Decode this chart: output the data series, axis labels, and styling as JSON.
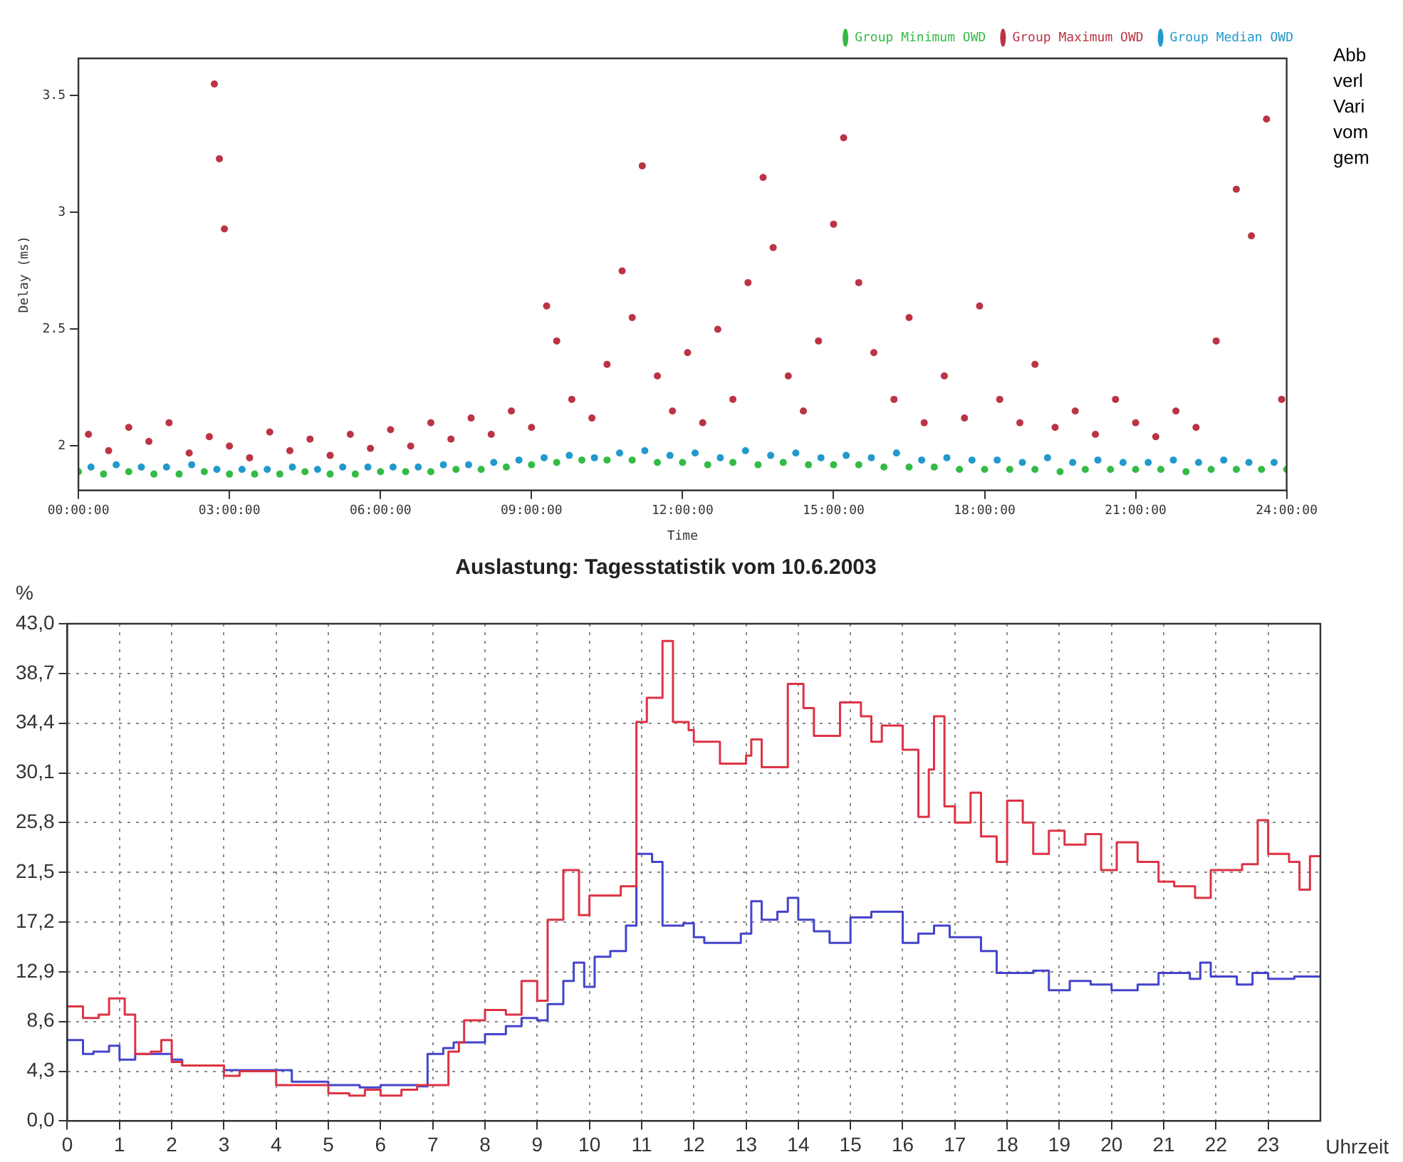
{
  "chart_data": [
    {
      "type": "scatter",
      "xlabel": "Time",
      "ylabel": "Delay (ms)",
      "xlim": [
        0,
        24
      ],
      "ylim": [
        1.81,
        3.66
      ],
      "xticks": [
        {
          "value": 0,
          "label": "00:00:00"
        },
        {
          "value": 3,
          "label": "03:00:00"
        },
        {
          "value": 6,
          "label": "06:00:00"
        },
        {
          "value": 9,
          "label": "09:00:00"
        },
        {
          "value": 12,
          "label": "12:00:00"
        },
        {
          "value": 15,
          "label": "15:00:00"
        },
        {
          "value": 18,
          "label": "18:00:00"
        },
        {
          "value": 21,
          "label": "21:00:00"
        },
        {
          "value": 24,
          "label": "24:00:00"
        }
      ],
      "yticks": [
        2,
        2.5,
        3,
        3.5
      ],
      "grid": false,
      "legend": "top right",
      "marker": "circle",
      "annotations": [
        "Abb",
        "verl",
        "Vari",
        "vom",
        "gem"
      ],
      "series": [
        {
          "name": "Group Minimum OWD",
          "color": "#33bb44",
          "x": [
            0,
            0.5,
            1,
            1.5,
            2,
            2.5,
            3,
            3.5,
            4,
            4.5,
            5,
            5.5,
            6,
            6.5,
            7,
            7.5,
            8,
            8.5,
            9,
            9.5,
            10,
            10.5,
            11,
            11.5,
            12,
            12.5,
            13,
            13.5,
            14,
            14.5,
            15,
            15.5,
            16,
            16.5,
            17,
            17.5,
            18,
            18.5,
            19,
            19.5,
            20,
            20.5,
            21,
            21.5,
            22,
            22.5,
            23,
            23.5,
            24
          ],
          "values": [
            1.89,
            1.88,
            1.89,
            1.88,
            1.88,
            1.89,
            1.88,
            1.88,
            1.88,
            1.89,
            1.88,
            1.88,
            1.89,
            1.89,
            1.89,
            1.9,
            1.9,
            1.91,
            1.92,
            1.93,
            1.94,
            1.94,
            1.94,
            1.93,
            1.93,
            1.92,
            1.93,
            1.92,
            1.93,
            1.92,
            1.92,
            1.92,
            1.91,
            1.91,
            1.91,
            1.9,
            1.9,
            1.9,
            1.9,
            1.89,
            1.9,
            1.9,
            1.9,
            1.9,
            1.89,
            1.9,
            1.9,
            1.9,
            1.9
          ]
        },
        {
          "name": "Group Maximum OWD",
          "color": "#bb3344",
          "x": [
            0.2,
            0.6,
            1.0,
            1.4,
            1.8,
            2.2,
            2.6,
            2.7,
            2.8,
            2.9,
            3.0,
            3.4,
            3.8,
            4.2,
            4.6,
            5.0,
            5.4,
            5.8,
            6.2,
            6.6,
            7.0,
            7.4,
            7.8,
            8.2,
            8.6,
            9.0,
            9.3,
            9.5,
            9.8,
            10.2,
            10.5,
            10.8,
            11.0,
            11.2,
            11.5,
            11.8,
            12.1,
            12.4,
            12.7,
            13.0,
            13.3,
            13.6,
            13.8,
            14.1,
            14.4,
            14.7,
            15.0,
            15.2,
            15.5,
            15.8,
            16.2,
            16.5,
            16.8,
            17.2,
            17.6,
            17.9,
            18.3,
            18.7,
            19.0,
            19.4,
            19.8,
            20.2,
            20.6,
            21.0,
            21.4,
            21.8,
            22.2,
            22.6,
            23.0,
            23.3,
            23.6,
            23.9
          ],
          "values": [
            2.05,
            1.98,
            2.08,
            2.02,
            2.1,
            1.97,
            2.04,
            3.55,
            3.23,
            2.93,
            2.0,
            1.95,
            2.06,
            1.98,
            2.03,
            1.96,
            2.05,
            1.99,
            2.07,
            2.0,
            2.1,
            2.03,
            2.12,
            2.05,
            2.15,
            2.08,
            2.6,
            2.45,
            2.2,
            2.12,
            2.35,
            2.75,
            2.55,
            3.2,
            2.3,
            2.15,
            2.4,
            2.1,
            2.5,
            2.2,
            2.7,
            3.15,
            2.85,
            2.3,
            2.15,
            2.45,
            2.95,
            3.32,
            2.7,
            2.4,
            2.2,
            2.55,
            2.1,
            2.3,
            2.12,
            2.6,
            2.2,
            2.1,
            2.35,
            2.08,
            2.15,
            2.05,
            2.2,
            2.1,
            2.04,
            2.15,
            2.08,
            2.45,
            3.1,
            2.9,
            3.4,
            2.2
          ]
        },
        {
          "name": "Group Median OWD",
          "color": "#2299cc",
          "x": [
            0.25,
            0.75,
            1.25,
            1.75,
            2.25,
            2.75,
            3.25,
            3.75,
            4.25,
            4.75,
            5.25,
            5.75,
            6.25,
            6.75,
            7.25,
            7.75,
            8.25,
            8.75,
            9.25,
            9.75,
            10.25,
            10.75,
            11.25,
            11.75,
            12.25,
            12.75,
            13.25,
            13.75,
            14.25,
            14.75,
            15.25,
            15.75,
            16.25,
            16.75,
            17.25,
            17.75,
            18.25,
            18.75,
            19.25,
            19.75,
            20.25,
            20.75,
            21.25,
            21.75,
            22.25,
            22.75,
            23.25,
            23.75
          ],
          "values": [
            1.91,
            1.92,
            1.91,
            1.91,
            1.92,
            1.9,
            1.9,
            1.9,
            1.91,
            1.9,
            1.91,
            1.91,
            1.91,
            1.91,
            1.92,
            1.92,
            1.93,
            1.94,
            1.95,
            1.96,
            1.95,
            1.97,
            1.98,
            1.96,
            1.97,
            1.95,
            1.98,
            1.96,
            1.97,
            1.95,
            1.96,
            1.95,
            1.97,
            1.94,
            1.95,
            1.94,
            1.94,
            1.93,
            1.95,
            1.93,
            1.94,
            1.93,
            1.93,
            1.94,
            1.93,
            1.94,
            1.93,
            1.93
          ]
        }
      ]
    },
    {
      "type": "step",
      "title": "Auslastung: Tagesstatistik vom 10.6.2003",
      "xlabel": "Uhrzeit",
      "ylabel": "%",
      "xlim": [
        0,
        24
      ],
      "ylim": [
        0,
        43
      ],
      "xticks": [
        0,
        1,
        2,
        3,
        4,
        5,
        6,
        7,
        8,
        9,
        10,
        11,
        12,
        13,
        14,
        15,
        16,
        17,
        18,
        19,
        20,
        21,
        22,
        23
      ],
      "yticks": [
        {
          "value": 0,
          "label": "0,0"
        },
        {
          "value": 4.3,
          "label": "4,3"
        },
        {
          "value": 8.6,
          "label": "8,6"
        },
        {
          "value": 12.9,
          "label": "12,9"
        },
        {
          "value": 17.2,
          "label": "17,2"
        },
        {
          "value": 21.5,
          "label": "21,5"
        },
        {
          "value": 25.8,
          "label": "25,8"
        },
        {
          "value": 30.1,
          "label": "30,1"
        },
        {
          "value": 34.4,
          "label": "34,4"
        },
        {
          "value": 38.7,
          "label": "38,7"
        },
        {
          "value": 43,
          "label": "43,0"
        }
      ],
      "grid": true,
      "marker": "none",
      "line_style": "solid",
      "series": [
        {
          "color": "#dd3344",
          "x": [
            0,
            0.3,
            0.6,
            0.8,
            1.1,
            1.3,
            1.6,
            1.8,
            2.0,
            2.2,
            3.0,
            3.3,
            4.0,
            5.0,
            5.4,
            5.7,
            6.0,
            6.4,
            6.7,
            7.3,
            7.5,
            7.6,
            8.0,
            8.4,
            8.7,
            9.0,
            9.2,
            9.5,
            9.8,
            10.0,
            10.6,
            10.9,
            11.1,
            11.4,
            11.6,
            11.9,
            12.0,
            12.5,
            13.0,
            13.1,
            13.3,
            13.8,
            14.1,
            14.3,
            14.8,
            15.2,
            15.4,
            15.6,
            16.0,
            16.3,
            16.5,
            16.6,
            16.8,
            17.0,
            17.3,
            17.5,
            17.8,
            18.0,
            18.3,
            18.5,
            18.8,
            19.1,
            19.5,
            19.8,
            20.1,
            20.5,
            20.9,
            21.2,
            21.6,
            21.9,
            22.5,
            22.8,
            23.0,
            23.4,
            23.6,
            23.8,
            24
          ],
          "values": [
            9.9,
            8.9,
            9.2,
            10.6,
            9.2,
            5.8,
            6.0,
            7.0,
            5.1,
            4.8,
            3.9,
            4.3,
            3.1,
            2.4,
            2.2,
            2.7,
            2.2,
            2.7,
            3.1,
            6.0,
            6.8,
            8.7,
            9.6,
            9.2,
            12.1,
            10.4,
            17.4,
            21.7,
            17.8,
            19.5,
            20.3,
            34.5,
            36.6,
            41.5,
            34.5,
            33.8,
            32.8,
            30.9,
            31.6,
            33.0,
            30.6,
            37.8,
            35.7,
            33.3,
            36.2,
            35.0,
            32.8,
            34.2,
            32.1,
            26.3,
            30.4,
            35.0,
            27.2,
            25.8,
            28.4,
            24.6,
            22.4,
            27.7,
            25.8,
            23.1,
            25.1,
            23.9,
            24.8,
            21.7,
            24.1,
            22.4,
            20.7,
            20.3,
            19.3,
            21.7,
            22.2,
            26.0,
            23.1,
            22.4,
            20.0,
            22.9,
            22.9
          ]
        },
        {
          "color": "#4444cc",
          "x": [
            0,
            0.3,
            0.5,
            0.8,
            1.0,
            1.3,
            2.0,
            2.2,
            3.0,
            4.3,
            5.0,
            5.6,
            6.0,
            6.7,
            6.9,
            7.2,
            7.4,
            8.0,
            8.4,
            8.7,
            9.0,
            9.2,
            9.5,
            9.7,
            9.9,
            10.1,
            10.4,
            10.7,
            10.9,
            11.2,
            11.4,
            11.8,
            12.0,
            12.2,
            12.9,
            13.1,
            13.3,
            13.6,
            13.8,
            14.0,
            14.3,
            14.6,
            15.0,
            15.4,
            16.0,
            16.3,
            16.6,
            16.9,
            17.5,
            17.8,
            18.5,
            18.8,
            19.2,
            19.6,
            20.0,
            20.5,
            20.9,
            21.5,
            21.7,
            21.9,
            22.4,
            22.7,
            23.0,
            23.5,
            24
          ],
          "values": [
            7.0,
            5.8,
            6.0,
            6.5,
            5.3,
            5.8,
            5.3,
            4.8,
            4.4,
            3.4,
            3.1,
            2.9,
            3.1,
            3.0,
            5.8,
            6.3,
            6.8,
            7.5,
            8.2,
            8.9,
            8.7,
            10.1,
            12.1,
            13.7,
            11.6,
            14.2,
            14.7,
            16.9,
            23.1,
            22.4,
            16.9,
            17.1,
            15.9,
            15.4,
            16.2,
            19.0,
            17.4,
            18.1,
            19.3,
            17.4,
            16.4,
            15.4,
            17.6,
            18.1,
            15.4,
            16.2,
            16.9,
            15.9,
            14.7,
            12.8,
            13.0,
            11.3,
            12.1,
            11.8,
            11.3,
            11.8,
            12.8,
            12.3,
            13.7,
            12.5,
            11.8,
            12.8,
            12.3,
            12.5,
            12.5
          ]
        }
      ]
    }
  ]
}
